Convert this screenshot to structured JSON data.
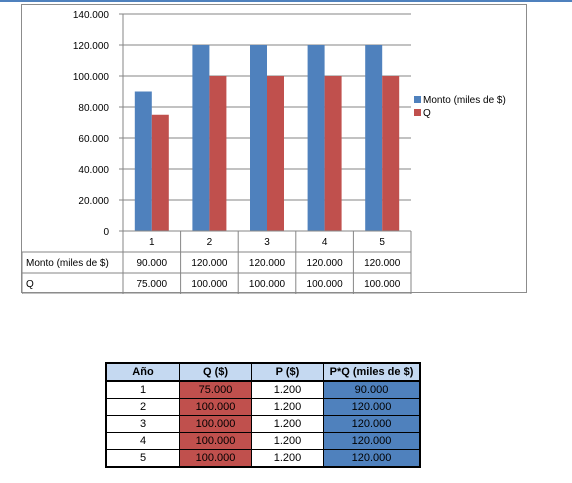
{
  "colors": {
    "monto": "#4F81BD",
    "q": "#C0504D",
    "q_cell": "#C0504D",
    "pq_cell": "#4F81BD",
    "header_bg": "#C5D9F1",
    "top_accent": "#4F81BD"
  },
  "chart_data": {
    "type": "bar",
    "categories": [
      "1",
      "2",
      "3",
      "4",
      "5"
    ],
    "series": [
      {
        "name": "Monto (miles de $)",
        "values": [
          90000,
          120000,
          120000,
          120000,
          120000
        ]
      },
      {
        "name": "Q",
        "values": [
          75000,
          100000,
          100000,
          100000,
          100000
        ]
      }
    ],
    "ylim": [
      0,
      140000
    ],
    "y_ticks": [
      0,
      20000,
      40000,
      60000,
      80000,
      100000,
      120000,
      140000
    ],
    "y_tick_labels": [
      "0",
      "20.000",
      "40.000",
      "60.000",
      "80.000",
      "100.000",
      "120.000",
      "140.000"
    ],
    "grid": true,
    "legend": "right",
    "data_table": {
      "rows": [
        {
          "label": "Monto (miles de $)",
          "values": [
            "90.000",
            "120.000",
            "120.000",
            "120.000",
            "120.000"
          ]
        },
        {
          "label": "Q",
          "values": [
            "75.000",
            "100.000",
            "100.000",
            "100.000",
            "100.000"
          ]
        }
      ]
    }
  },
  "table": {
    "headers": [
      "Año",
      "Q  ($)",
      "P ($)",
      "P*Q (miles de $)"
    ],
    "rows": [
      [
        "1",
        "75.000",
        "1.200",
        "90.000"
      ],
      [
        "2",
        "100.000",
        "1.200",
        "120.000"
      ],
      [
        "3",
        "100.000",
        "1.200",
        "120.000"
      ],
      [
        "4",
        "100.000",
        "1.200",
        "120.000"
      ],
      [
        "5",
        "100.000",
        "1.200",
        "120.000"
      ]
    ]
  }
}
